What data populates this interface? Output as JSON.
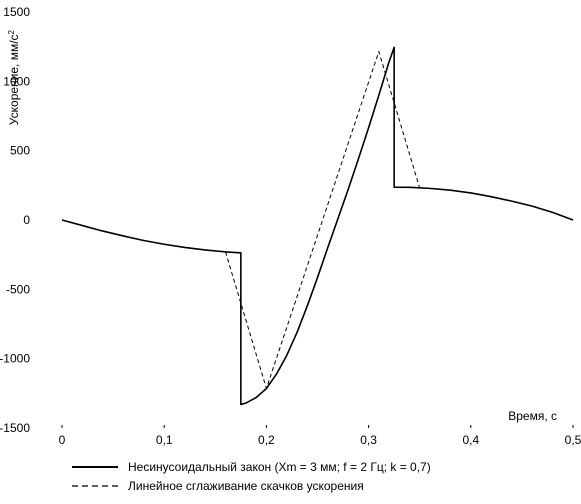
{
  "chart_data": {
    "type": "line",
    "xlabel": "Время, с",
    "ylabel_text": "Ускорение, мм/с",
    "ylabel_sup": "2",
    "xlim": [
      0,
      0.5
    ],
    "ylim": [
      -1500,
      1500
    ],
    "x_ticks": [
      0,
      0.1,
      0.2,
      0.3,
      0.4,
      0.5
    ],
    "x_tick_labels": [
      "0",
      "0,1",
      "0,2",
      "0,3",
      "0,4",
      "0,5"
    ],
    "y_ticks": [
      1500,
      1000,
      500,
      0,
      -500,
      -1000,
      -1500
    ],
    "y_tick_labels": [
      "1500",
      "1000",
      "500",
      "0",
      "-500",
      "-1000",
      "-1500"
    ],
    "grid": false,
    "legend_position": "bottom",
    "series": [
      {
        "name": "Несинусоидальный закон (Xm = 3 мм; f = 2 Гц; k = 0,7)",
        "style": "solid",
        "x": [
          0,
          0.02,
          0.04,
          0.06,
          0.08,
          0.1,
          0.12,
          0.14,
          0.16,
          0.175,
          0.175,
          0.18,
          0.19,
          0.2,
          0.21,
          0.22,
          0.23,
          0.24,
          0.25,
          0.26,
          0.27,
          0.28,
          0.29,
          0.3,
          0.31,
          0.32,
          0.325,
          0.325,
          0.34,
          0.36,
          0.38,
          0.4,
          0.42,
          0.44,
          0.46,
          0.48,
          0.5
        ],
        "y": [
          0,
          -40,
          -80,
          -115,
          -148,
          -175,
          -198,
          -216,
          -230,
          -237,
          -1330,
          -1320,
          -1280,
          -1215,
          -1110,
          -975,
          -810,
          -620,
          -415,
          -200,
          10,
          220,
          440,
          665,
          900,
          1140,
          1245,
          237,
          236,
          228,
          215,
          195,
          168,
          136,
          100,
          55,
          0
        ]
      },
      {
        "name": "Линейное сглаживание скачков ускорения",
        "style": "dashed",
        "x": [
          0.16,
          0.2,
          0.31,
          0.35
        ],
        "y": [
          -230,
          -1215,
          1215,
          230
        ]
      }
    ]
  }
}
